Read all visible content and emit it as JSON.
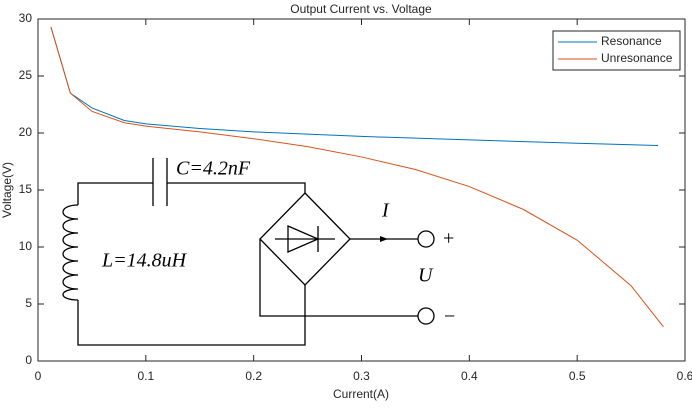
{
  "chart_data": {
    "type": "line",
    "title": "Output Current vs. Voltage",
    "x_label": "Current(A)",
    "y_label": "Voltage(V)",
    "xlim": [
      0,
      0.6
    ],
    "ylim": [
      0,
      30
    ],
    "xticks": [
      0,
      0.1,
      0.2,
      0.3,
      0.4,
      0.5,
      0.6
    ],
    "yticks": [
      0,
      5,
      10,
      15,
      20,
      25,
      30
    ],
    "grid": false,
    "legend": "upper right",
    "series": [
      {
        "name": "Resonance",
        "color": "#0072BD",
        "x": [
          0.012,
          0.03,
          0.05,
          0.08,
          0.1,
          0.15,
          0.2,
          0.3,
          0.4,
          0.5,
          0.575
        ],
        "values": [
          29.3,
          23.5,
          22.2,
          21.1,
          20.8,
          20.4,
          20.1,
          19.7,
          19.4,
          19.1,
          18.9
        ]
      },
      {
        "name": "Unresonance",
        "color": "#D95319",
        "x": [
          0.012,
          0.03,
          0.05,
          0.08,
          0.1,
          0.15,
          0.2,
          0.25,
          0.3,
          0.35,
          0.4,
          0.45,
          0.5,
          0.55,
          0.58
        ],
        "values": [
          29.3,
          23.5,
          21.9,
          20.9,
          20.6,
          20.1,
          19.5,
          18.8,
          17.9,
          16.8,
          15.3,
          13.3,
          10.6,
          6.6,
          3.0
        ]
      }
    ],
    "annotations": {
      "capacitor": "C=4.2nF",
      "inductor": "L=14.8uH",
      "current": "I",
      "voltage": "U",
      "plus": "+",
      "minus": "−"
    }
  }
}
